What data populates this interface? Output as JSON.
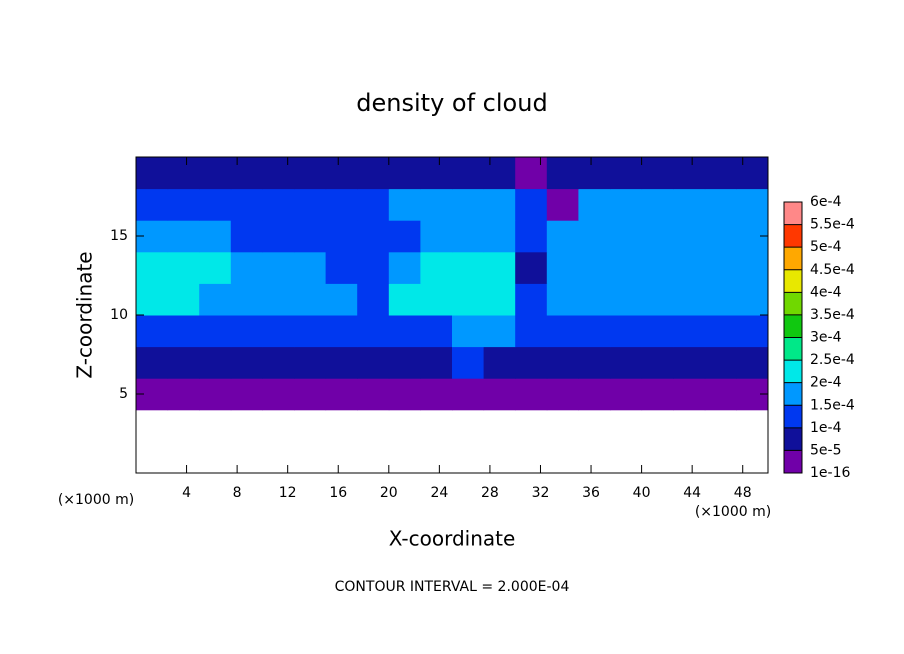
{
  "chart_data": {
    "type": "contour",
    "title": "density of cloud",
    "x_label": "X-coordinate",
    "y_label": "Z-coordinate",
    "x_unit": "(×1000 m)",
    "y_unit": "(×1000 m)",
    "annotation": "CONTOUR INTERVAL = 2.000E-04",
    "xlim": [
      0,
      50
    ],
    "ylim": [
      0,
      20
    ],
    "xticks": [
      4,
      8,
      12,
      16,
      20,
      24,
      28,
      32,
      36,
      40,
      44,
      48
    ],
    "yticks": [
      5,
      10,
      15
    ],
    "x_bins": [
      0,
      2.5,
      5,
      7.5,
      10,
      12.5,
      15,
      17.5,
      20,
      22.5,
      25,
      27.5,
      30,
      32.5,
      35,
      37.5,
      40,
      42.5,
      45,
      47.5,
      50
    ],
    "z_bins": [
      0,
      2,
      4,
      6,
      8,
      10,
      12,
      14,
      16,
      18,
      20
    ],
    "levels": [
      {
        "value": 1e-16,
        "label": "1e-16"
      },
      {
        "value": 5e-05,
        "label": "5e-5"
      },
      {
        "value": 0.0001,
        "label": "1e-4"
      },
      {
        "value": 0.00015,
        "label": "1.5e-4"
      },
      {
        "value": 0.0002,
        "label": "2e-4"
      },
      {
        "value": 0.00025,
        "label": "2.5e-4"
      },
      {
        "value": 0.0003,
        "label": "3e-4"
      },
      {
        "value": 0.00035,
        "label": "3.5e-4"
      },
      {
        "value": 0.0004,
        "label": "4e-4"
      },
      {
        "value": 0.00045,
        "label": "4.5e-4"
      },
      {
        "value": 0.0005,
        "label": "5e-4"
      },
      {
        "value": 0.00055,
        "label": "5.5e-4"
      },
      {
        "value": 0.0006,
        "label": "6e-4"
      }
    ],
    "colors": [
      "#7000a8",
      "#10109a",
      "#0038f0",
      "#0098ff",
      "#00e8e8",
      "#00e888",
      "#10c810",
      "#70d800",
      "#e8e800",
      "#ffa800",
      "#ff3800",
      "#ff8888"
    ],
    "values": [
      [
        null,
        null,
        null,
        null,
        null,
        null,
        null,
        null,
        null,
        null,
        null,
        null,
        null,
        null,
        null,
        null,
        null,
        null,
        null,
        null
      ],
      [
        null,
        null,
        null,
        null,
        null,
        null,
        null,
        null,
        null,
        null,
        null,
        null,
        null,
        null,
        null,
        null,
        null,
        null,
        null,
        null
      ],
      [
        3e-05,
        3e-05,
        3e-05,
        3e-05,
        3e-05,
        3e-05,
        3e-05,
        3e-05,
        3e-05,
        3e-05,
        3e-05,
        3e-05,
        3e-05,
        3e-05,
        3e-05,
        3e-05,
        3e-05,
        3e-05,
        3e-05,
        3e-05
      ],
      [
        9e-05,
        9e-05,
        9e-05,
        9e-05,
        9e-05,
        9e-05,
        9e-05,
        9e-05,
        9e-05,
        9e-05,
        0.00011,
        9e-05,
        6e-05,
        9e-05,
        9e-05,
        9e-05,
        9e-05,
        9e-05,
        9e-05,
        9e-05
      ],
      [
        0.00013,
        0.00013,
        0.00013,
        0.00013,
        0.00013,
        0.00013,
        0.00013,
        0.00013,
        0.00013,
        0.00014,
        0.00016,
        0.00016,
        0.00011,
        0.00013,
        0.00013,
        0.00013,
        0.00013,
        0.00013,
        0.00013,
        0.00013
      ],
      [
        0.00021,
        0.00021,
        0.00017,
        0.00017,
        0.00017,
        0.00017,
        0.00016,
        0.00013,
        0.00021,
        0.00021,
        0.00021,
        0.00021,
        0.00012,
        0.00017,
        0.00017,
        0.00017,
        0.00017,
        0.00017,
        0.00017,
        0.00017
      ],
      [
        0.00021,
        0.00021,
        0.00021,
        0.00018,
        0.00017,
        0.00016,
        0.00012,
        0.00012,
        0.00017,
        0.00021,
        0.00021,
        0.00021,
        8e-05,
        0.00019,
        0.00019,
        0.00019,
        0.00019,
        0.00019,
        0.00019,
        0.00019
      ],
      [
        0.00017,
        0.00017,
        0.00017,
        0.00011,
        0.00011,
        0.00011,
        0.00011,
        0.00011,
        0.00014,
        0.00017,
        0.00017,
        0.00016,
        0.00012,
        0.00018,
        0.00018,
        0.00018,
        0.00018,
        0.00018,
        0.00018,
        0.00018
      ],
      [
        0.00013,
        0.00013,
        0.00013,
        0.00011,
        0.00011,
        0.00011,
        0.00011,
        0.00011,
        0.00015,
        0.00015,
        0.00015,
        0.00015,
        0.00013,
        4e-05,
        0.00016,
        0.00016,
        0.00016,
        0.00016,
        0.00016,
        0.00016
      ],
      [
        6e-05,
        6e-05,
        6e-05,
        6e-05,
        6e-05,
        6e-05,
        6e-05,
        6e-05,
        6e-05,
        6e-05,
        6e-05,
        6e-05,
        3e-05,
        6e-05,
        6e-05,
        6e-05,
        6e-05,
        6e-05,
        6e-05,
        6e-05
      ]
    ]
  }
}
